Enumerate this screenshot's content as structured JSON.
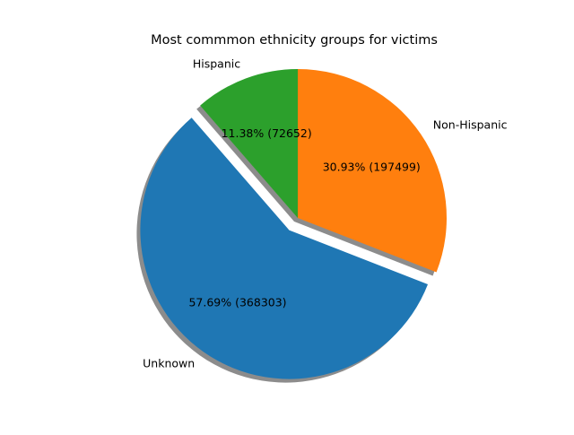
{
  "chart_data": {
    "type": "pie",
    "title": "Most commmon ethnicity groups for victims",
    "shadow": true,
    "start_angle_deg": 90,
    "direction": "counterclockwise",
    "slices": [
      {
        "label": "Hispanic",
        "value": 72652,
        "percent": 11.38,
        "pct_text": "11.38%  (72652)",
        "color": "#2ca02c",
        "exploded": false
      },
      {
        "label": "Unknown",
        "value": 368303,
        "percent": 57.69,
        "pct_text": "57.69%  (368303)",
        "color": "#1f77b4",
        "exploded": true
      },
      {
        "label": "Non-Hispanic",
        "value": 197499,
        "percent": 30.93,
        "pct_text": "30.93%  (197499)",
        "color": "#ff7f0e",
        "exploded": false
      }
    ]
  }
}
